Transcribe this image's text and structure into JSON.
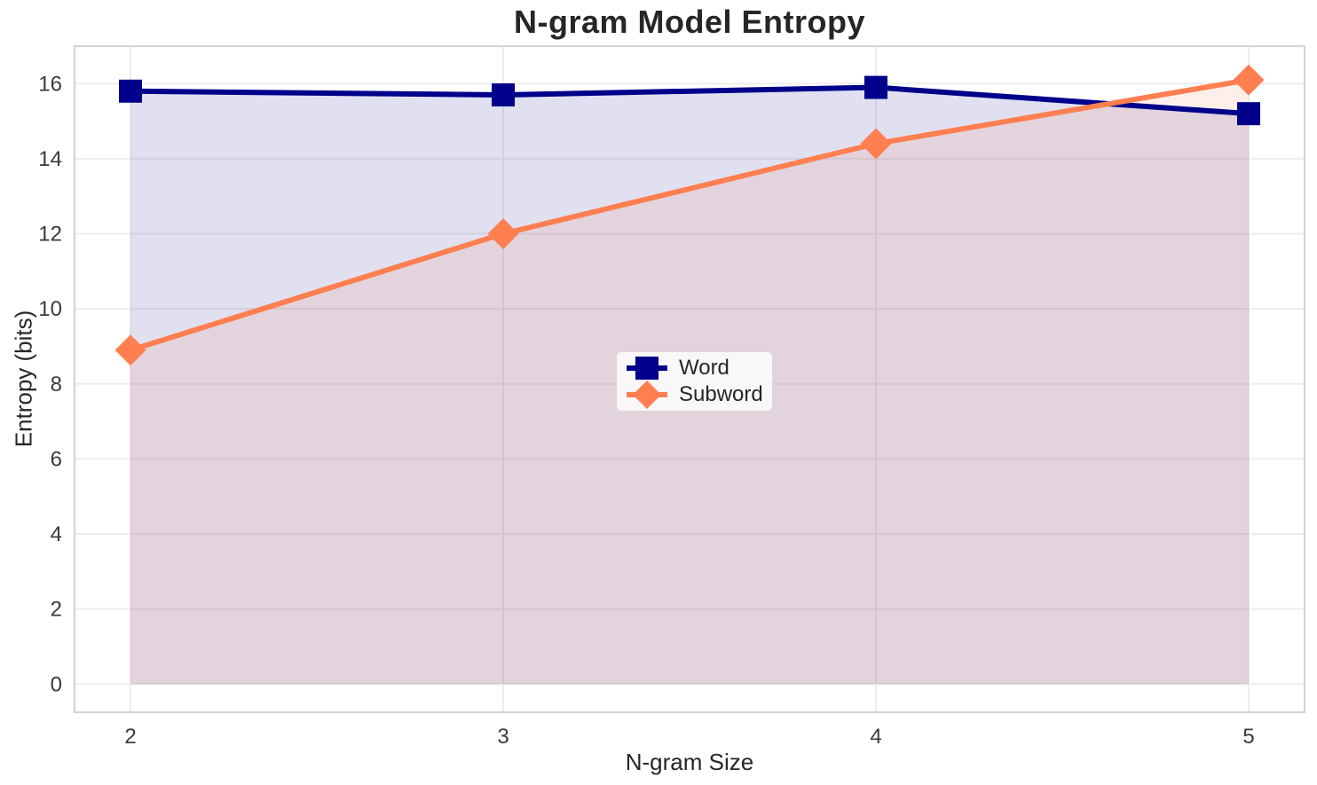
{
  "chart_data": {
    "type": "line",
    "title": "N-gram Model Entropy",
    "xlabel": "N-gram Size",
    "ylabel": "Entropy (bits)",
    "x": [
      2,
      3,
      4,
      5
    ],
    "series": [
      {
        "name": "Word",
        "color": "#00008B",
        "marker": "square",
        "values": [
          15.8,
          15.7,
          15.9,
          15.2
        ],
        "fill_to_zero": true,
        "fill_opacity": 0.12
      },
      {
        "name": "Subword",
        "color": "#FF7F50",
        "marker": "diamond",
        "values": [
          8.9,
          12.0,
          14.4,
          16.1
        ],
        "fill_to_zero": true,
        "fill_opacity": 0.12
      }
    ],
    "xticks": [
      "2",
      "3",
      "4",
      "5"
    ],
    "xtick_values": [
      2,
      3,
      4,
      5
    ],
    "yticks": [
      "0",
      "2",
      "4",
      "6",
      "8",
      "10",
      "12",
      "14",
      "16"
    ],
    "ytick_values": [
      0,
      2,
      4,
      6,
      8,
      10,
      12,
      14,
      16
    ],
    "xlim": [
      1.85,
      5.15
    ],
    "ylim": [
      -0.75,
      17.0
    ],
    "grid": true,
    "legend": {
      "position": "center",
      "labels": [
        "Word",
        "Subword"
      ]
    }
  },
  "colors": {
    "grid": "#EDEDED",
    "spine": "#D4D4D4",
    "text": "#262626",
    "background": "#FFFFFF"
  }
}
